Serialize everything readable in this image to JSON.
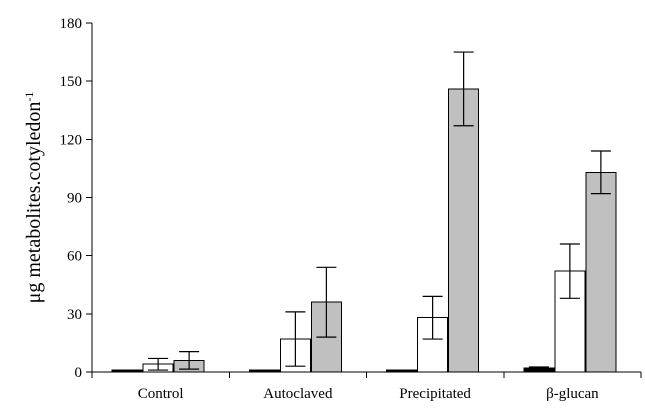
{
  "chart_data": {
    "type": "bar",
    "title": "",
    "xlabel": "",
    "ylabel": "μg metabolites.cotyledon",
    "ylabel_superscript": "-1",
    "categories": [
      "Control",
      "Autoclaved",
      "Precipitated",
      "β-glucan"
    ],
    "ylim": [
      0,
      180
    ],
    "yticks": [
      "0",
      "30",
      "60",
      "90",
      "120",
      "150",
      "180"
    ],
    "grid": false,
    "series": [
      {
        "fill": "#000000",
        "values": [
          1,
          1,
          1,
          2
        ],
        "errors": [
          0.3,
          0.3,
          0.3,
          0.6
        ]
      },
      {
        "fill": "#ffffff",
        "values": [
          4,
          17,
          28,
          52
        ],
        "errors": [
          3,
          14,
          11,
          14
        ]
      },
      {
        "fill": "#c0c0c0",
        "values": [
          6,
          36,
          146,
          103
        ],
        "errors": [
          4.5,
          18,
          19,
          11
        ]
      }
    ]
  }
}
